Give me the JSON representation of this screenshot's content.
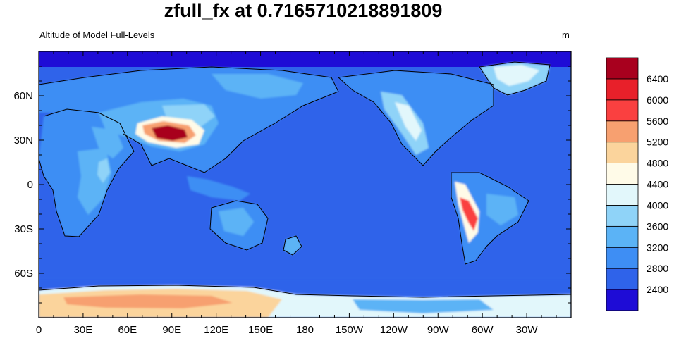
{
  "title": "zfull_fx at 0.7165710218891809",
  "subtitle_left": "Altitude of Model Full-Levels",
  "subtitle_right": "m",
  "chart_data": {
    "type": "heatmap",
    "projection": "cylindrical-equidistant",
    "lon_range": [
      0,
      360
    ],
    "lat_range": [
      -90,
      90
    ],
    "x_tick_labels": [
      {
        "lon": 0,
        "label": "0"
      },
      {
        "lon": 30,
        "label": "30E"
      },
      {
        "lon": 60,
        "label": "60E"
      },
      {
        "lon": 90,
        "label": "90E"
      },
      {
        "lon": 120,
        "label": "120E"
      },
      {
        "lon": 150,
        "label": "150E"
      },
      {
        "lon": 180,
        "label": "180"
      },
      {
        "lon": 210,
        "label": "150W"
      },
      {
        "lon": 240,
        "label": "120W"
      },
      {
        "lon": 270,
        "label": "90W"
      },
      {
        "lon": 300,
        "label": "60W"
      },
      {
        "lon": 330,
        "label": "30W"
      }
    ],
    "y_tick_labels": [
      {
        "lat": 60,
        "label": "60N"
      },
      {
        "lat": 30,
        "label": "30N"
      },
      {
        "lat": 0,
        "label": "0"
      },
      {
        "lat": -30,
        "label": "30S"
      },
      {
        "lat": -60,
        "label": "60S"
      }
    ],
    "colorbar": {
      "levels": [
        "2400",
        "2800",
        "3200",
        "3600",
        "4000",
        "4400",
        "4800",
        "5200",
        "5600",
        "6000",
        "6400"
      ],
      "colors": [
        "#1E0CD6",
        "#2F63EA",
        "#3E8EF4",
        "#5BB3F6",
        "#8FD3F8",
        "#E2F7FB",
        "#FFFBE8",
        "#FBD49C",
        "#F7A070",
        "#FA4040",
        "#E8202A",
        "#A8001E"
      ]
    },
    "regions": [
      {
        "name": "ocean-background",
        "level_index": 1
      },
      {
        "name": "tibetan-plateau",
        "level_index": 10
      },
      {
        "name": "andes",
        "level_index": 9
      },
      {
        "name": "antarctica",
        "level_index": 7
      },
      {
        "name": "greenland",
        "level_index": 5
      },
      {
        "name": "arctic-band",
        "level_index": 0
      }
    ]
  }
}
